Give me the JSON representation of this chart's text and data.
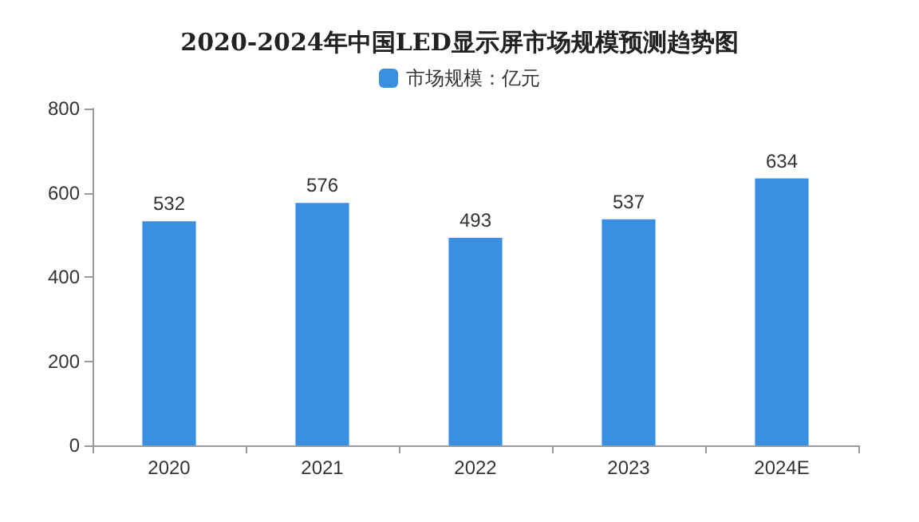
{
  "chart_data": {
    "type": "bar",
    "title": "2020-2024年中国LED显示屏市场规模预测趋势图",
    "categories": [
      "2020",
      "2021",
      "2022",
      "2023",
      "2024E"
    ],
    "series": [
      {
        "name": "市场规模：亿元",
        "color": "#3b8fe0",
        "values": [
          532,
          576,
          493,
          537,
          634
        ]
      }
    ],
    "ylim": [
      0,
      800
    ],
    "yticks": [
      0,
      200,
      400,
      600,
      800
    ],
    "grid": false,
    "legend": "top",
    "data_labels": true
  }
}
